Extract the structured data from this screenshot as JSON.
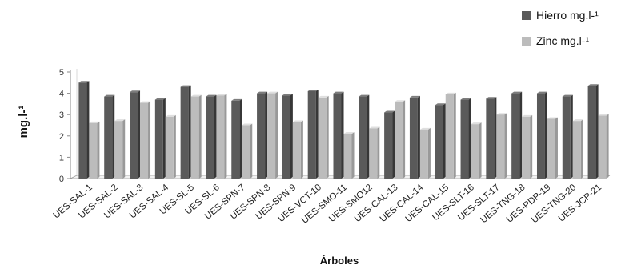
{
  "chart_data": {
    "type": "bar",
    "title": "",
    "xlabel": "Árboles",
    "ylabel": "mg.l-¹",
    "ylim": [
      0,
      5
    ],
    "yticks": [
      "0",
      "1",
      "2",
      "3",
      "4",
      "5"
    ],
    "grid": false,
    "legend_position": "top-right",
    "categories": [
      "UES-SAL-1",
      "UES-SAL-2",
      "UES-SAL-3",
      "UES-SAL-4",
      "UES-SL-5",
      "UES-SL-6",
      "UES-SPN-7",
      "UES-SPN-8",
      "UES-SPN-9",
      "UES-VCT-10",
      "UES-SMO-11",
      "UES-SMO12",
      "UES-CAL-13",
      "UES-CAL-14",
      "UES-CAL-15",
      "UES-SLT-16",
      "UES-SLT-17",
      "UES-TNG-18",
      "UES-PDP-19",
      "UES-TNG-20",
      "UES-JCP-21"
    ],
    "series": [
      {
        "name": "Hierro mg.l-¹",
        "color": "#5a5a5a",
        "values": [
          4.5,
          3.85,
          4.05,
          3.7,
          4.3,
          3.85,
          3.65,
          4.0,
          3.9,
          4.1,
          4.0,
          3.85,
          3.1,
          3.8,
          3.45,
          3.7,
          3.75,
          4.0,
          4.0,
          3.85,
          4.35
        ]
      },
      {
        "name": "Zinc mg.l-¹",
        "color": "#bcbcbc",
        "values": [
          2.6,
          2.7,
          3.55,
          2.9,
          3.85,
          3.9,
          2.5,
          4.0,
          2.65,
          3.8,
          2.1,
          2.35,
          3.6,
          2.3,
          3.95,
          2.55,
          3.0,
          2.9,
          2.8,
          2.7,
          2.95
        ]
      }
    ]
  }
}
